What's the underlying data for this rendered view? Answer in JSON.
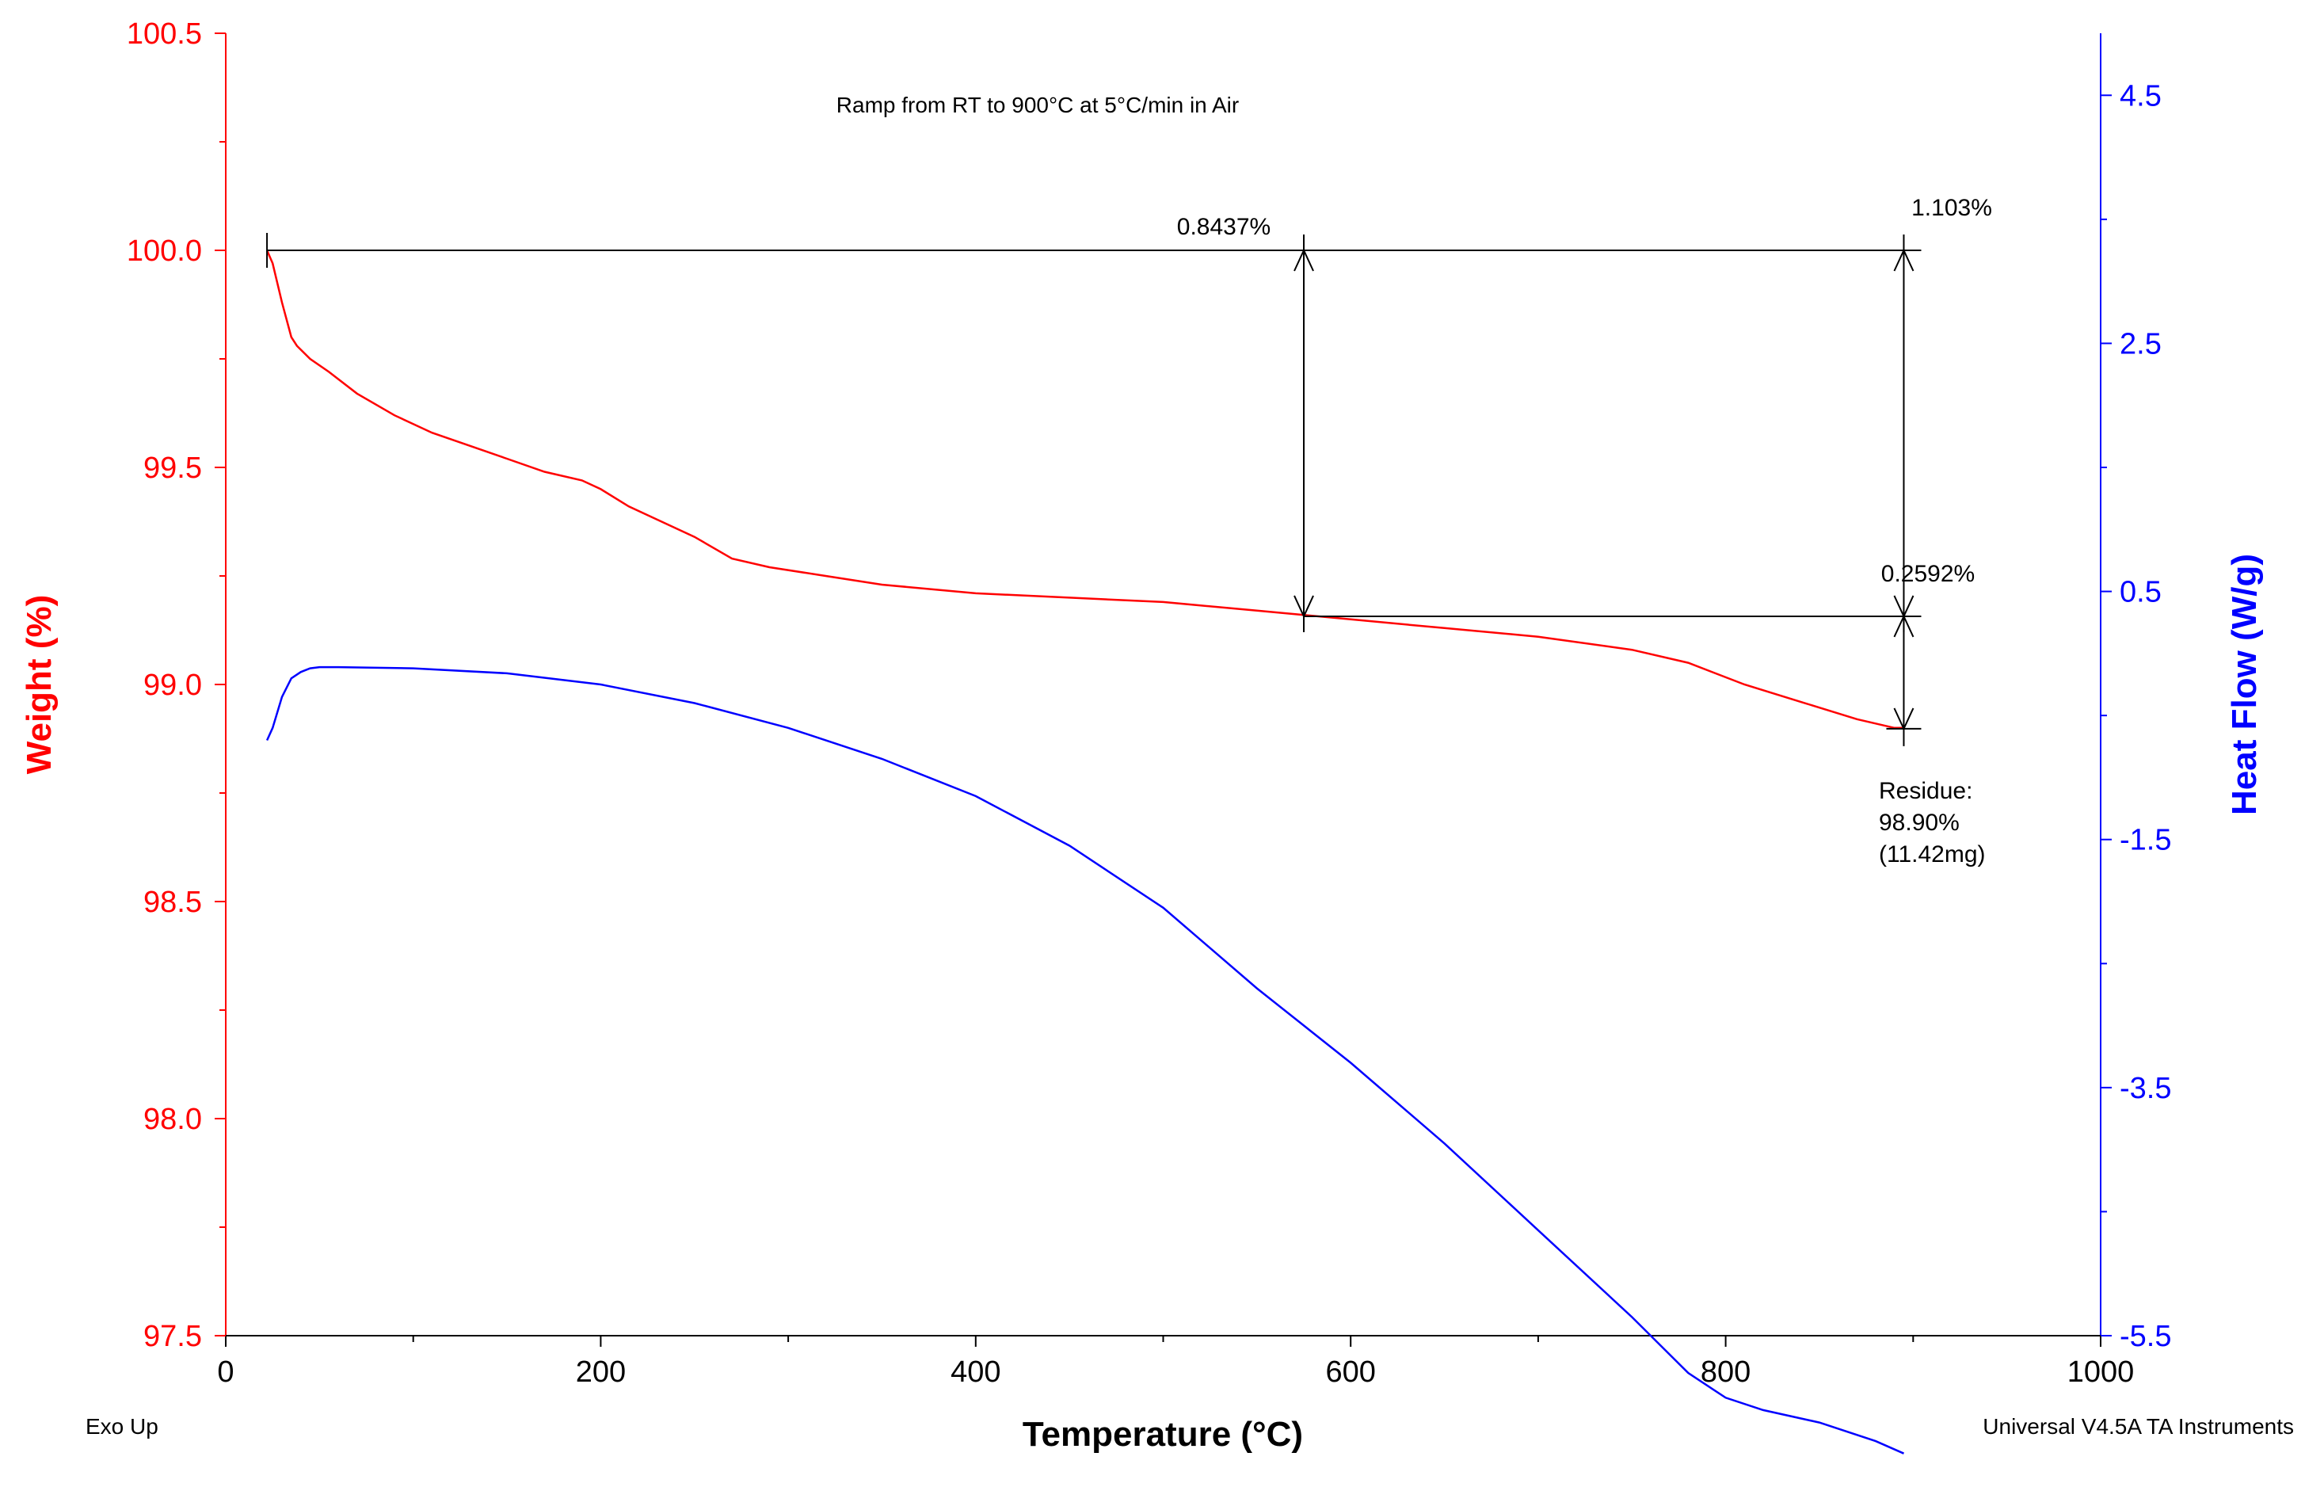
{
  "chart_data": {
    "type": "line",
    "title": "Ramp from RT to 900°C at 5°C/min in Air",
    "xlabel": "Temperature (°C)",
    "ylabel_left": "Weight (%)",
    "ylabel_right": "Heat Flow (W/g)",
    "xlim": [
      0,
      1000
    ],
    "ylim_left": [
      97.5,
      100.5
    ],
    "ylim_right": [
      -5.5,
      5.0
    ],
    "x_ticks": [
      "0",
      "200",
      "400",
      "600",
      "800",
      "1000"
    ],
    "left_ticks": [
      "100.5",
      "100.0",
      "99.5",
      "99.0",
      "98.5",
      "98.0",
      "97.5"
    ],
    "right_ticks": [
      "4.5",
      "2.5",
      "0.5",
      "-1.5",
      "-3.5",
      "-5.5"
    ],
    "footer_left": "Exo Up",
    "footer_right": "Universal V4.5A TA Instruments",
    "colors": {
      "weight": "#ff0000",
      "heat_flow": "#0000ff",
      "annotation": "#000000"
    },
    "series": [
      {
        "name": "Weight",
        "axis": "left",
        "x": [
          22,
          25,
          30,
          35,
          38,
          45,
          55,
          70,
          90,
          110,
          130,
          150,
          170,
          190,
          200,
          215,
          230,
          250,
          270,
          290,
          320,
          350,
          400,
          450,
          500,
          550,
          575,
          600,
          650,
          700,
          750,
          780,
          810,
          840,
          870,
          890,
          895
        ],
        "values": [
          100.0,
          99.97,
          99.88,
          99.8,
          99.78,
          99.75,
          99.72,
          99.67,
          99.62,
          99.58,
          99.55,
          99.52,
          99.49,
          99.47,
          99.45,
          99.41,
          99.38,
          99.34,
          99.29,
          99.27,
          99.25,
          99.23,
          99.21,
          99.2,
          99.19,
          99.17,
          99.16,
          99.15,
          99.13,
          99.11,
          99.08,
          99.05,
          99.0,
          98.96,
          98.92,
          98.9,
          98.9
        ]
      },
      {
        "name": "Heat Flow",
        "axis": "right",
        "x": [
          22,
          25,
          30,
          35,
          40,
          45,
          50,
          60,
          100,
          150,
          200,
          250,
          300,
          350,
          400,
          450,
          500,
          550,
          600,
          650,
          700,
          750,
          780,
          800,
          820,
          850,
          880,
          895
        ],
        "values": [
          -0.7,
          -0.6,
          -0.35,
          -0.2,
          -0.15,
          -0.12,
          -0.11,
          -0.11,
          -0.12,
          -0.16,
          -0.25,
          -0.4,
          -0.6,
          -0.85,
          -1.15,
          -1.55,
          -2.05,
          -2.7,
          -3.3,
          -3.95,
          -4.65,
          -5.35,
          -5.8,
          -6.0,
          -6.1,
          -6.2,
          -6.35,
          -6.45
        ]
      }
    ],
    "annotations": {
      "step1": {
        "label": "0.8437%",
        "x": 575,
        "from": 100.0,
        "to": 99.157
      },
      "step2": {
        "label": "0.2592%",
        "x": 895,
        "from": 99.157,
        "to": 98.898
      },
      "total": {
        "label": "1.103%",
        "x": 895,
        "from": 100.0,
        "to": 98.898
      },
      "reference_start_x": 22,
      "residue": [
        "Residue:",
        "98.90%",
        "(11.42mg)"
      ]
    }
  }
}
